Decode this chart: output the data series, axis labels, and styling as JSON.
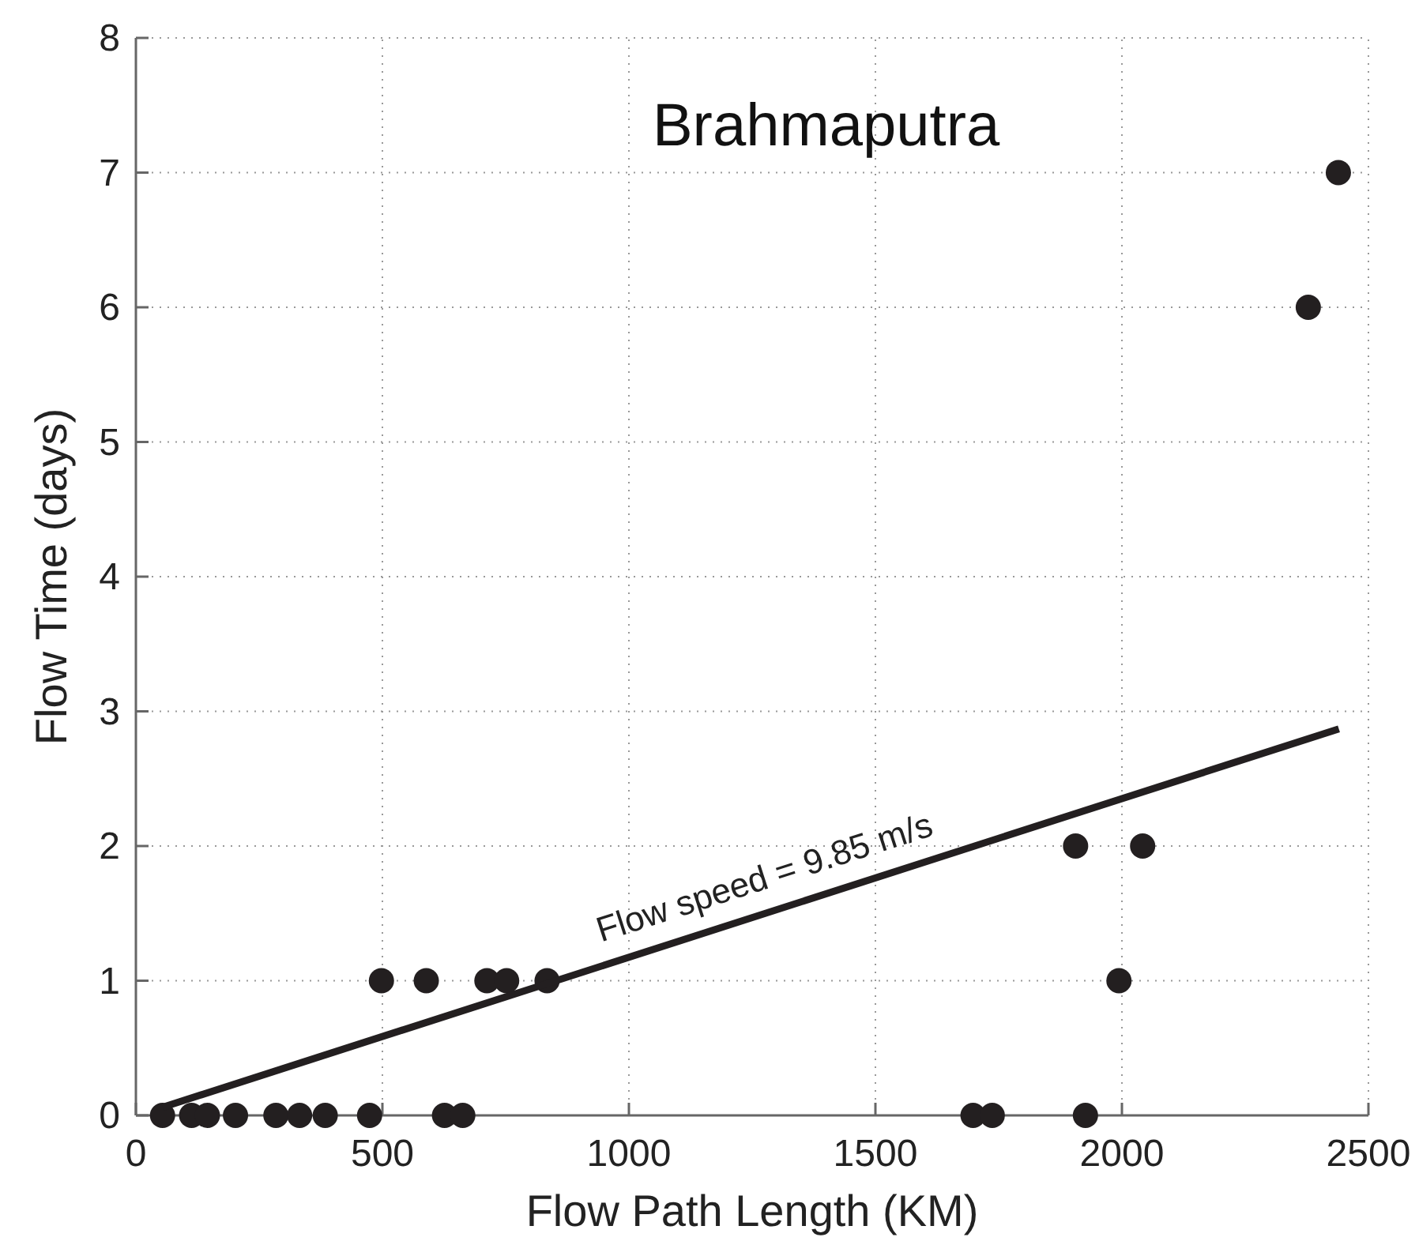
{
  "chart_data": {
    "type": "scatter",
    "title": "Brahmaputra",
    "xlabel": "Flow Path Length (KM)",
    "ylabel": "Flow Time (days)",
    "xlim": [
      0,
      2500
    ],
    "ylim": [
      0,
      8
    ],
    "xticks": [
      0,
      500,
      1000,
      1500,
      2000,
      2500
    ],
    "yticks": [
      0,
      1,
      2,
      3,
      4,
      5,
      6,
      7,
      8
    ],
    "grid": true,
    "series": [
      {
        "color": "#231f20",
        "marker": "circle",
        "x": [
          54,
          113,
          145,
          202,
          284,
          332,
          384,
          474,
          626,
          663,
          1698,
          1737,
          1926,
          498,
          589,
          712,
          752,
          834,
          1994,
          1906,
          2042,
          2378,
          2439
        ],
        "values": [
          0,
          0,
          0,
          0,
          0,
          0,
          0,
          0,
          0,
          0,
          0,
          0,
          0,
          1,
          1,
          1,
          1,
          1,
          1,
          2,
          2,
          6,
          7
        ]
      },
      {
        "type": "line",
        "color": "#231f20",
        "line_style": "solid",
        "marker": "none",
        "x": [
          54,
          2440
        ],
        "values": [
          0.06,
          2.87
        ]
      }
    ],
    "annotations": [
      "Flow speed = 9.85 m/s"
    ]
  }
}
